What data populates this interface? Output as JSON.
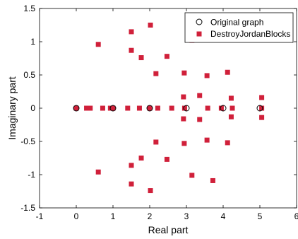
{
  "chart_data": {
    "type": "scatter",
    "title": "",
    "xlabel": "Real part",
    "ylabel": "Imaginary part",
    "xlim": [
      -1,
      6
    ],
    "ylim": [
      -1.5,
      1.5
    ],
    "xticks": [
      -1,
      0,
      1,
      2,
      3,
      4,
      5,
      6
    ],
    "yticks": [
      -1.5,
      -1,
      -0.5,
      0,
      0.5,
      1,
      1.5
    ],
    "grid": false,
    "legend_position": "top-right",
    "series": [
      {
        "name": "Original graph",
        "marker": "circle-open",
        "color": "#000000",
        "points": [
          [
            0,
            0
          ],
          [
            1,
            0
          ],
          [
            2,
            0
          ],
          [
            3,
            0
          ],
          [
            4,
            0
          ],
          [
            5,
            0
          ]
        ]
      },
      {
        "name": "DestroyJordanBlocks",
        "marker": "square",
        "color": "#d0203a",
        "points": [
          [
            0,
            0
          ],
          [
            0.28,
            0
          ],
          [
            0.38,
            0
          ],
          [
            0.72,
            0
          ],
          [
            0.93,
            0
          ],
          [
            1.0,
            0
          ],
          [
            1.4,
            0
          ],
          [
            1.72,
            0
          ],
          [
            2.0,
            0
          ],
          [
            2.22,
            0
          ],
          [
            2.6,
            0
          ],
          [
            2.95,
            0
          ],
          [
            3.58,
            0
          ],
          [
            3.95,
            0
          ],
          [
            4.25,
            0
          ],
          [
            5.05,
            0
          ],
          [
            0.6,
            0.96
          ],
          [
            0.6,
            -0.96
          ],
          [
            1.5,
            1.15
          ],
          [
            1.5,
            -1.14
          ],
          [
            1.5,
            0.87
          ],
          [
            1.5,
            -0.86
          ],
          [
            1.77,
            0.76
          ],
          [
            1.77,
            -0.75
          ],
          [
            2.02,
            1.25
          ],
          [
            2.02,
            -1.24
          ],
          [
            2.17,
            0.52
          ],
          [
            2.17,
            -0.51
          ],
          [
            2.47,
            0.78
          ],
          [
            2.47,
            -0.77
          ],
          [
            2.94,
            0.53
          ],
          [
            2.94,
            -0.53
          ],
          [
            2.92,
            0.17
          ],
          [
            2.92,
            -0.16
          ],
          [
            3.15,
            1.02
          ],
          [
            3.15,
            -1.01
          ],
          [
            3.36,
            0.19
          ],
          [
            3.36,
            -0.17
          ],
          [
            3.56,
            0.49
          ],
          [
            3.56,
            -0.48
          ],
          [
            3.72,
            -1.09
          ],
          [
            4.12,
            0.54
          ],
          [
            4.12,
            -0.52
          ],
          [
            4.22,
            0.15
          ],
          [
            4.22,
            -0.13
          ],
          [
            5.05,
            0.16
          ],
          [
            5.05,
            -0.14
          ]
        ]
      }
    ]
  }
}
